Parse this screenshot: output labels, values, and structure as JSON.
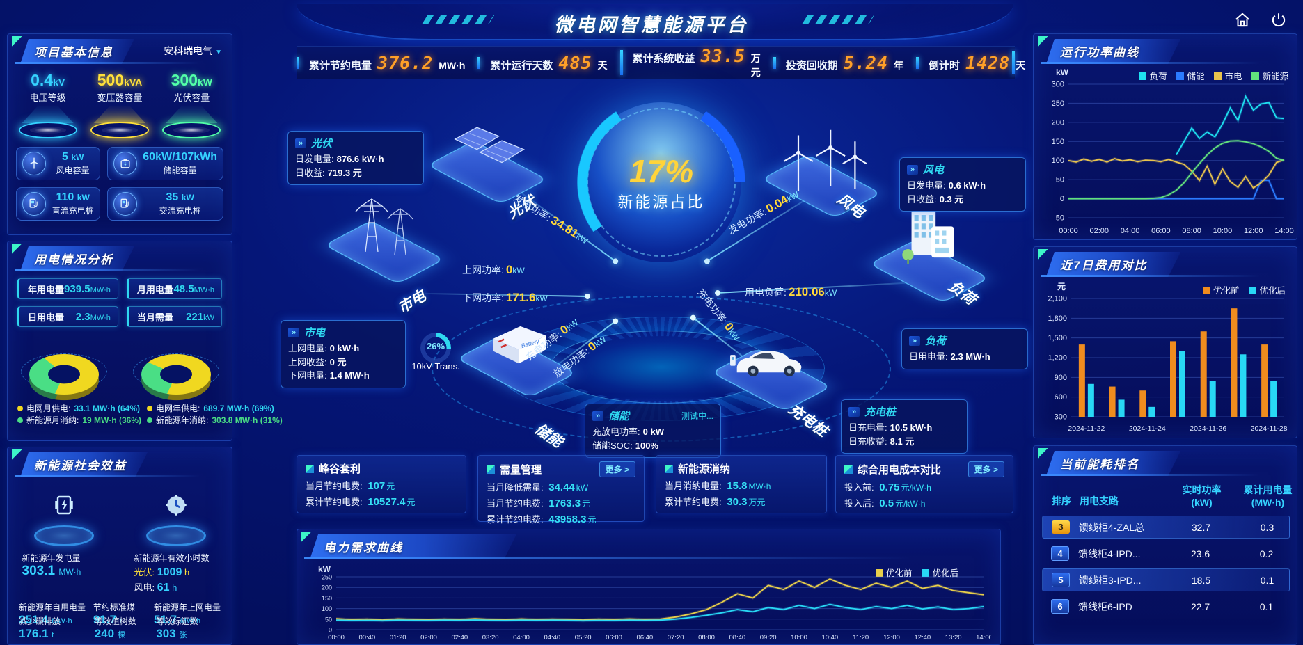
{
  "app": {
    "title": "微电网智慧能源平台"
  },
  "kpi_bar": {
    "items": [
      {
        "label": "累计节约电量",
        "value": "376.2",
        "unit": "MW·h"
      },
      {
        "label": "累计运行天数",
        "value": "485",
        "unit": "天"
      },
      {
        "label": "累计系统收益",
        "value": "33.5",
        "unit": "万元"
      },
      {
        "label": "投资回收期",
        "value": "5.24",
        "unit": "年"
      },
      {
        "label": "倒计时",
        "value": "1428",
        "unit": "天"
      }
    ]
  },
  "project_info": {
    "title": "项目基本信息",
    "company": "安科瑞电气",
    "spotlights": [
      {
        "value": "0.4",
        "unit": "kV",
        "label": "电压等级",
        "color": "#35d2ff"
      },
      {
        "value": "500",
        "unit": "kVA",
        "label": "变压器容量",
        "color": "#ffe03a"
      },
      {
        "value": "300",
        "unit": "kW",
        "label": "光伏容量",
        "color": "#52ffa8"
      }
    ],
    "tiles": [
      {
        "icon": "wind-icon",
        "value": "5",
        "unit": "kW",
        "label": "风电容量"
      },
      {
        "icon": "battery-icon",
        "value": "60kW/107kWh",
        "unit": "",
        "label": "储能容量"
      },
      {
        "icon": "dc-charger-icon",
        "value": "110",
        "unit": "kW",
        "label": "直流充电桩"
      },
      {
        "icon": "ac-charger-icon",
        "value": "35",
        "unit": "kW",
        "label": "交流充电桩"
      }
    ]
  },
  "usage": {
    "title": "用电情况分析",
    "stats": [
      {
        "label": "年用电量",
        "value": "939.5",
        "unit": "MW·h"
      },
      {
        "label": "月用电量",
        "value": "48.5",
        "unit": "MW·h"
      },
      {
        "label": "日用电量",
        "value": "2.3",
        "unit": "MW·h"
      },
      {
        "label": "当月需量",
        "value": "221",
        "unit": "kW"
      }
    ]
  },
  "benefit": {
    "title": "新能源社会效益",
    "generation": {
      "label": "新能源年发电量",
      "value": "303.1",
      "unit": "MW·h"
    },
    "hours": {
      "label": "新能源年有效小时数",
      "pv_label": "光伏:",
      "pv_value": "1009",
      "pv_unit": "h",
      "wind_label": "风电:",
      "wind_value": "61",
      "wind_unit": "h"
    },
    "items_bottom": [
      {
        "label": "新能源年自用电量",
        "value": "251.4",
        "unit": "MW·h"
      },
      {
        "label": "节约标准煤",
        "value": "91.7",
        "unit": "t"
      },
      {
        "label": "新能源年上网电量",
        "value": "51.7",
        "unit": "MW·h"
      },
      {
        "label": "减少碳排放",
        "value": "176.1",
        "unit": "t"
      },
      {
        "label": "等效植树数",
        "value": "240",
        "unit": "棵"
      },
      {
        "label": "等效绿证数",
        "value": "303",
        "unit": "张"
      }
    ]
  },
  "center": {
    "core": {
      "percent": "17%",
      "label": "新能源占比"
    },
    "transformer": {
      "percent": "26%",
      "label": "10kV Trans."
    },
    "nodes": {
      "pv": {
        "name": "光伏",
        "title": "光伏",
        "rows": [
          [
            "日发电量:",
            "876.6 kW·h"
          ],
          [
            "日收益:",
            "719.3 元"
          ]
        ]
      },
      "grid": {
        "name": "市电",
        "title": "市电",
        "rows": [
          [
            "上网电量:",
            "0 kW·h"
          ],
          [
            "上网收益:",
            "0 元"
          ],
          [
            "下网电量:",
            "1.4 MW·h"
          ]
        ]
      },
      "wind": {
        "name": "风电",
        "title": "风电",
        "rows": [
          [
            "日发电量:",
            "0.6 kW·h"
          ],
          [
            "日收益:",
            "0.3 元"
          ]
        ]
      },
      "load": {
        "name": "负荷",
        "title": "负荷",
        "rows": [
          [
            "日用电量:",
            "2.3 MW·h"
          ]
        ]
      },
      "storage": {
        "name": "储能",
        "title": "储能",
        "badge": "测试中...",
        "rows": [
          [
            "充放电功率:",
            "0 kW"
          ],
          [
            "储能SOC:",
            "100%"
          ]
        ]
      },
      "charger": {
        "name": "充电桩",
        "title": "充电桩",
        "rows": [
          [
            "日充电量:",
            "10.5 kW·h"
          ],
          [
            "日充收益:",
            "8.1 元"
          ]
        ]
      }
    },
    "flows": [
      {
        "label": "发电功率:",
        "value": "34.81",
        "unit": "kW"
      },
      {
        "label": "上网功率:",
        "value": "0",
        "unit": "kW"
      },
      {
        "label": "下网功率:",
        "value": "171.6",
        "unit": "kW"
      },
      {
        "label": "发电功率:",
        "value": "0.04",
        "unit": "kW"
      },
      {
        "label": "用电负荷:",
        "value": "210.06",
        "unit": "kW"
      },
      {
        "label": "充电功率:",
        "value": "0",
        "unit": "kW"
      },
      {
        "label": "放电功率:",
        "value": "0",
        "unit": "kW"
      },
      {
        "label": "充电功率:",
        "value": "0",
        "unit": "kW"
      }
    ]
  },
  "cards": {
    "more_label": "更多 >",
    "items": [
      {
        "title": "峰谷套利",
        "more": false,
        "rows": [
          [
            "当月节约电费:",
            "107",
            "元"
          ],
          [
            "累计节约电费:",
            "10527.4",
            "元"
          ]
        ]
      },
      {
        "title": "需量管理",
        "more": true,
        "rows": [
          [
            "当月降低需量:",
            "34.44",
            "kW"
          ],
          [
            "当月节约电费:",
            "1763.3",
            "元"
          ],
          [
            "累计节约电费:",
            "43958.3",
            "元"
          ]
        ]
      },
      {
        "title": "新能源消纳",
        "more": false,
        "rows": [
          [
            "当月消纳电量:",
            "15.8",
            "MW·h"
          ],
          [
            "累计节约电费:",
            "30.3",
            "万元"
          ]
        ]
      },
      {
        "title": "综合用电成本对比",
        "more": true,
        "rows": [
          [
            "投入前:",
            "0.75",
            "元/kW·h"
          ],
          [
            "投入后:",
            "0.5",
            "元/kW·h"
          ]
        ]
      }
    ]
  },
  "right": {
    "power_panel_title": "运行功率曲线",
    "cost_panel_title": "近7日费用对比",
    "ranking": {
      "title": "当前能耗排名",
      "headers": [
        [
          "排序"
        ],
        [
          "用电支路"
        ],
        [
          "实时功率",
          "(kW)"
        ],
        [
          "累计用电量",
          "(MW·h)"
        ]
      ],
      "rows": [
        {
          "rank": "3",
          "gold": true,
          "hl": true,
          "branch": "馈线柜4-ZAL总",
          "power": "32.7",
          "energy": "0.3"
        },
        {
          "rank": "4",
          "gold": false,
          "hl": false,
          "branch": "馈线柜4-IPD...",
          "power": "23.6",
          "energy": "0.2"
        },
        {
          "rank": "5",
          "gold": false,
          "hl": true,
          "branch": "馈线柜3-IPD...",
          "power": "18.5",
          "energy": "0.1"
        },
        {
          "rank": "6",
          "gold": false,
          "hl": false,
          "branch": "馈线柜6-IPD",
          "power": "22.7",
          "energy": "0.1"
        }
      ]
    }
  },
  "demand_panel": {
    "title": "电力需求曲线"
  },
  "chart_data": [
    {
      "id": "power-curve",
      "type": "line",
      "title": "运行功率曲线",
      "ylabel": "kW",
      "ylim": [
        -50,
        300
      ],
      "yticks": [
        -50,
        0,
        50,
        100,
        150,
        200,
        250,
        300
      ],
      "xticks": [
        "00:00",
        "02:00",
        "04:00",
        "06:00",
        "08:00",
        "10:00",
        "12:00",
        "14:00"
      ],
      "grid": true,
      "legend_position": "top",
      "series": [
        {
          "name": "负荷",
          "color": "#1ee0f0",
          "values": [
            null,
            null,
            null,
            null,
            null,
            null,
            null,
            null,
            null,
            null,
            null,
            null,
            null,
            null,
            115,
            150,
            185,
            158,
            175,
            162,
            196,
            238,
            205,
            268,
            232,
            248,
            252,
            212,
            210
          ]
        },
        {
          "name": "储能",
          "color": "#2b7bff",
          "values": [
            0,
            0,
            0,
            0,
            0,
            0,
            0,
            0,
            0,
            0,
            0,
            0,
            0,
            0,
            0,
            0,
            0,
            0,
            0,
            0,
            0,
            0,
            0,
            0,
            0,
            48,
            48,
            0,
            0
          ]
        },
        {
          "name": "市电",
          "color": "#e8c34d",
          "values": [
            100,
            96,
            104,
            98,
            103,
            96,
            105,
            99,
            102,
            97,
            101,
            100,
            97,
            103,
            96,
            90,
            72,
            48,
            85,
            38,
            78,
            45,
            30,
            58,
            28,
            42,
            62,
            95,
            102
          ]
        },
        {
          "name": "新能源",
          "color": "#62e07d",
          "values": [
            0,
            0,
            0,
            0,
            0,
            0,
            0,
            0,
            0,
            0,
            0,
            1,
            3,
            10,
            22,
            42,
            68,
            92,
            115,
            133,
            145,
            151,
            152,
            149,
            144,
            136,
            124,
            106,
            100
          ]
        }
      ]
    },
    {
      "id": "cost-compare",
      "type": "bar",
      "title": "近7日费用对比",
      "ylabel": "元",
      "ylim": [
        300,
        2100
      ],
      "yticks": [
        300,
        600,
        900,
        1200,
        1500,
        1800,
        2100
      ],
      "ytick_labels": [
        "300",
        "600",
        "900",
        "1,200",
        "1,500",
        "1,800",
        "2,100"
      ],
      "categories": [
        "2024-11-22",
        "2024-11-23",
        "2024-11-24",
        "2024-11-25",
        "2024-11-26",
        "2024-11-27",
        "2024-11-28"
      ],
      "xtick_indices": [
        0,
        2,
        4,
        6
      ],
      "grid": true,
      "legend_position": "top-right",
      "series": [
        {
          "name": "优化前",
          "color": "#f08c1e",
          "values": [
            1400,
            760,
            700,
            1450,
            1600,
            1950,
            1400
          ]
        },
        {
          "name": "优化后",
          "color": "#28d8f5",
          "values": [
            800,
            560,
            450,
            1300,
            850,
            1250,
            850
          ]
        }
      ]
    },
    {
      "id": "demand-curve",
      "type": "line",
      "title": "电力需求曲线",
      "ylabel": "kW",
      "ylim": [
        0,
        250
      ],
      "yticks": [
        0,
        50,
        100,
        150,
        200,
        250
      ],
      "xticks": [
        "00:00",
        "00:40",
        "01:20",
        "02:00",
        "02:40",
        "03:20",
        "04:00",
        "04:40",
        "05:20",
        "06:00",
        "06:40",
        "07:20",
        "08:00",
        "08:40",
        "09:20",
        "10:00",
        "10:40",
        "11:20",
        "12:00",
        "12:40",
        "13:20",
        "14:00"
      ],
      "grid": true,
      "legend_position": "top-right",
      "series": [
        {
          "name": "优化前",
          "color": "#e8cf4a",
          "values": [
            52,
            48,
            50,
            46,
            51,
            49,
            47,
            50,
            48,
            52,
            49,
            47,
            51,
            48,
            50,
            49,
            46,
            50,
            48,
            51,
            49,
            50,
            60,
            75,
            95,
            130,
            170,
            150,
            210,
            190,
            230,
            200,
            240,
            210,
            190,
            220,
            200,
            230,
            195,
            210,
            185,
            175,
            165
          ]
        },
        {
          "name": "优化后",
          "color": "#28d8f5",
          "values": [
            45,
            43,
            44,
            42,
            45,
            44,
            43,
            45,
            44,
            46,
            44,
            43,
            45,
            44,
            45,
            44,
            42,
            44,
            43,
            45,
            44,
            45,
            50,
            58,
            68,
            80,
            95,
            85,
            105,
            95,
            115,
            100,
            120,
            105,
            95,
            110,
            100,
            115,
            98,
            108,
            95,
            100,
            110
          ]
        }
      ]
    },
    {
      "id": "month-donut",
      "type": "pie",
      "slices": [
        {
          "label": "电网月供电",
          "text": "33.1 MW·h (64%)",
          "value": 64,
          "color": "#f0d820",
          "text_color": "#2fd8f0"
        },
        {
          "label": "新能源月消纳",
          "text": "19 MW·h (36%)",
          "value": 36,
          "color": "#4ade85",
          "text_color": "#4ade85"
        }
      ]
    },
    {
      "id": "year-donut",
      "type": "pie",
      "slices": [
        {
          "label": "电网年供电",
          "text": "689.7 MW·h (69%)",
          "value": 69,
          "color": "#f0d820",
          "text_color": "#2fd8f0"
        },
        {
          "label": "新能源年消纳",
          "text": "303.8 MW·h (31%)",
          "value": 31,
          "color": "#4ade85",
          "text_color": "#4ade85"
        }
      ]
    }
  ]
}
